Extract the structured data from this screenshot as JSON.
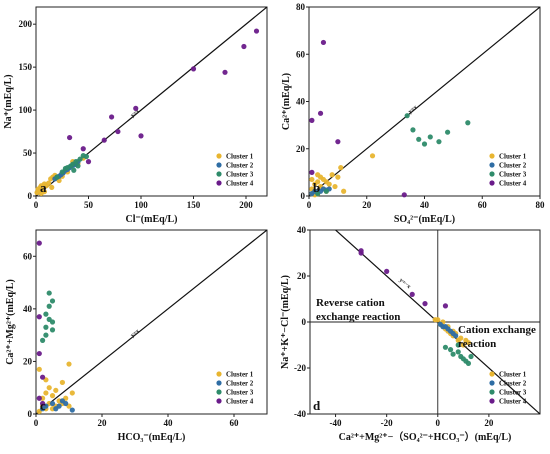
{
  "figure": {
    "legend_position": "bottom-right",
    "cluster_colors": {
      "Cluster 1": "#e8b530",
      "Cluster 2": "#2e6da4",
      "Cluster 3": "#2e8b6a",
      "Cluster 4": "#6a1b8a"
    }
  },
  "chart_data": [
    {
      "id": "a",
      "type": "scatter",
      "panel_label": "a",
      "xlabel": "Cl⁻(mEq/L)",
      "ylabel": "Na⁺(mEq/L)",
      "xlim": [
        0,
        220
      ],
      "ylim": [
        0,
        220
      ],
      "xticks": [
        0,
        50,
        100,
        150,
        200
      ],
      "yticks": [
        0,
        50,
        100,
        150,
        200
      ],
      "reference_line": {
        "label": "y=x",
        "slope": 1
      },
      "legend": [
        "Cluster 1",
        "Cluster 2",
        "Cluster 3",
        "Cluster 4"
      ],
      "series": [
        {
          "name": "Cluster 1",
          "color": "#e8b530",
          "points": [
            [
              1,
              4
            ],
            [
              2,
              8
            ],
            [
              3,
              6
            ],
            [
              4,
              10
            ],
            [
              5,
              12
            ],
            [
              6,
              9
            ],
            [
              8,
              14
            ],
            [
              10,
              12
            ],
            [
              12,
              15
            ],
            [
              14,
              20
            ],
            [
              16,
              22
            ],
            [
              18,
              24
            ],
            [
              20,
              21
            ],
            [
              25,
              23
            ],
            [
              30,
              28
            ],
            [
              35,
              40
            ],
            [
              40,
              38
            ],
            [
              45,
              44
            ],
            [
              8,
              5
            ],
            [
              5,
              3
            ],
            [
              15,
              10
            ],
            [
              22,
              18
            ],
            [
              28,
              30
            ]
          ]
        },
        {
          "name": "Cluster 2",
          "color": "#2e6da4",
          "points": [
            [
              18,
              20
            ],
            [
              20,
              22
            ],
            [
              22,
              23
            ],
            [
              24,
              25
            ],
            [
              26,
              27
            ],
            [
              28,
              30
            ],
            [
              30,
              31
            ],
            [
              32,
              33
            ],
            [
              34,
              35
            ],
            [
              36,
              36
            ],
            [
              38,
              37
            ],
            [
              40,
              40
            ]
          ]
        },
        {
          "name": "Cluster 3",
          "color": "#2e8b6a",
          "points": [
            [
              20,
              22
            ],
            [
              25,
              28
            ],
            [
              28,
              32
            ],
            [
              30,
              33
            ],
            [
              33,
              35
            ],
            [
              35,
              37
            ],
            [
              38,
              40
            ],
            [
              42,
              43
            ],
            [
              45,
              47
            ],
            [
              48,
              46
            ],
            [
              40,
              35
            ],
            [
              36,
              30
            ]
          ]
        },
        {
          "name": "Cluster 4",
          "color": "#6a1b8a",
          "points": [
            [
              32,
              68
            ],
            [
              50,
              40
            ],
            [
              65,
              65
            ],
            [
              72,
              92
            ],
            [
              78,
              75
            ],
            [
              95,
              102
            ],
            [
              100,
              70
            ],
            [
              150,
              148
            ],
            [
              180,
              144
            ],
            [
              198,
              174
            ],
            [
              210,
              192
            ],
            [
              45,
              55
            ]
          ]
        }
      ]
    },
    {
      "id": "b",
      "type": "scatter",
      "panel_label": "b",
      "xlabel": "SO₄²⁻(mEq/L)",
      "ylabel": "Ca²⁺(mEq/L)",
      "xlim": [
        0,
        80
      ],
      "ylim": [
        0,
        80
      ],
      "xticks": [
        0,
        20,
        40,
        60,
        80
      ],
      "yticks": [
        0,
        20,
        40,
        60,
        80
      ],
      "reference_line": {
        "label": "y=x",
        "slope": 1
      },
      "legend": [
        "Cluster 1",
        "Cluster 2",
        "Cluster 3",
        "Cluster 4"
      ],
      "series": [
        {
          "name": "Cluster 1",
          "color": "#e8b530",
          "points": [
            [
              1,
              1
            ],
            [
              1,
              3
            ],
            [
              2,
              5
            ],
            [
              2,
              2
            ],
            [
              3,
              6
            ],
            [
              3,
              1
            ],
            [
              4,
              4
            ],
            [
              4,
              8
            ],
            [
              5,
              3
            ],
            [
              5,
              7
            ],
            [
              6,
              2
            ],
            [
              6,
              6
            ],
            [
              7,
              5
            ],
            [
              8,
              9
            ],
            [
              9,
              4
            ],
            [
              10,
              8
            ],
            [
              11,
              12
            ],
            [
              12,
              2
            ],
            [
              2,
              0.5
            ],
            [
              22,
              17
            ],
            [
              1,
              7
            ],
            [
              3,
              9
            ]
          ]
        },
        {
          "name": "Cluster 2",
          "color": "#2e6da4",
          "points": [
            [
              1,
              1
            ],
            [
              2,
              2
            ],
            [
              3,
              1.5
            ],
            [
              4,
              2
            ],
            [
              5,
              3
            ],
            [
              6,
              2.5
            ],
            [
              7,
              3
            ]
          ]
        },
        {
          "name": "Cluster 3",
          "color": "#2e8b6a",
          "points": [
            [
              34,
              34
            ],
            [
              36,
              28
            ],
            [
              38,
              24
            ],
            [
              40,
              22
            ],
            [
              42,
              25
            ],
            [
              45,
              23
            ],
            [
              48,
              27
            ],
            [
              55,
              31
            ],
            [
              3,
              1
            ],
            [
              6,
              2
            ]
          ]
        },
        {
          "name": "Cluster 4",
          "color": "#6a1b8a",
          "points": [
            [
              1,
              32
            ],
            [
              4,
              35
            ],
            [
              5,
              65
            ],
            [
              10,
              23
            ],
            [
              33,
              0.5
            ],
            [
              1,
              10
            ]
          ]
        }
      ]
    },
    {
      "id": "c",
      "type": "scatter",
      "panel_label": "c",
      "xlabel": "HCO₃⁻(mEq/L)",
      "ylabel": "Ca²⁺+Mg²⁺(mEq/L)",
      "xlim": [
        0,
        70
      ],
      "ylim": [
        0,
        70
      ],
      "xticks": [
        0,
        20,
        40,
        60
      ],
      "yticks": [
        0,
        20,
        40,
        60
      ],
      "reference_line": {
        "label": "y=x",
        "slope": 1
      },
      "legend": [
        "Cluster 1",
        "Cluster 2",
        "Cluster 3",
        "Cluster 4"
      ],
      "series": [
        {
          "name": "Cluster 1",
          "color": "#e8b530",
          "points": [
            [
              1,
              1
            ],
            [
              2,
              3
            ],
            [
              2,
              6
            ],
            [
              3,
              2
            ],
            [
              3,
              8
            ],
            [
              4,
              4
            ],
            [
              4,
              10
            ],
            [
              5,
              2
            ],
            [
              5,
              7
            ],
            [
              6,
              3
            ],
            [
              6,
              9
            ],
            [
              7,
              5
            ],
            [
              8,
              4
            ],
            [
              8,
              12
            ],
            [
              9,
              6
            ],
            [
              10,
              19
            ],
            [
              10,
              3
            ],
            [
              11,
              8
            ],
            [
              1,
              17
            ],
            [
              3,
              13
            ]
          ]
        },
        {
          "name": "Cluster 2",
          "color": "#2e6da4",
          "points": [
            [
              2,
              2
            ],
            [
              3,
              3
            ],
            [
              5,
              4
            ],
            [
              6,
              2
            ],
            [
              7,
              3
            ],
            [
              8,
              5
            ],
            [
              9,
              4
            ],
            [
              11,
              1.5
            ]
          ]
        },
        {
          "name": "Cluster 3",
          "color": "#2e8b6a",
          "points": [
            [
              3,
              33
            ],
            [
              3,
              38
            ],
            [
              4,
              36
            ],
            [
              4,
              41
            ],
            [
              4,
              46
            ],
            [
              5,
              32
            ],
            [
              5,
              35
            ],
            [
              3,
              30
            ],
            [
              2,
              28
            ],
            [
              5,
              43
            ]
          ]
        },
        {
          "name": "Cluster 4",
          "color": "#6a1b8a",
          "points": [
            [
              1,
              65
            ],
            [
              1,
              37
            ],
            [
              1,
              23
            ],
            [
              2,
              14
            ],
            [
              1,
              6
            ],
            [
              2,
              4
            ]
          ]
        }
      ]
    },
    {
      "id": "d",
      "type": "scatter",
      "panel_label": "d",
      "xlabel": "Ca²⁺+Mg²⁺−（SO₄²⁻+HCO₃⁻）(mEq/L)",
      "ylabel": "Na⁺+K⁺−Cl⁻(mEq/L)",
      "xlim": [
        -50,
        40
      ],
      "ylim": [
        -40,
        40
      ],
      "xticks": [
        -40,
        -20,
        0,
        20
      ],
      "yticks": [
        -40,
        -20,
        0,
        20,
        40
      ],
      "reference_line": {
        "label": "y=−x",
        "slope": -1
      },
      "annotations": [
        "Reverse cation exchange reaction",
        "Cation exchange reaction"
      ],
      "legend": [
        "Cluster 1",
        "Cluster 2",
        "Cluster 3",
        "Cluster 4"
      ],
      "series": [
        {
          "name": "Cluster 1",
          "color": "#e8b530",
          "points": [
            [
              0,
              1
            ],
            [
              1,
              -1
            ],
            [
              2,
              -2
            ],
            [
              3,
              -3
            ],
            [
              4,
              -4
            ],
            [
              5,
              -5
            ],
            [
              6,
              -6
            ],
            [
              7,
              -5
            ],
            [
              8,
              -8
            ],
            [
              9,
              -7
            ],
            [
              10,
              -10
            ],
            [
              11,
              -8
            ],
            [
              -1,
              1
            ],
            [
              2,
              0
            ],
            [
              4,
              -2
            ],
            [
              6,
              -4
            ],
            [
              12,
              -9
            ]
          ]
        },
        {
          "name": "Cluster 2",
          "color": "#2e6da4",
          "points": [
            [
              1,
              -1
            ],
            [
              2,
              -2
            ],
            [
              3,
              -2
            ],
            [
              4,
              -3
            ],
            [
              5,
              -4
            ],
            [
              6,
              -5
            ],
            [
              7,
              -6
            ]
          ]
        },
        {
          "name": "Cluster 3",
          "color": "#2e8b6a",
          "points": [
            [
              3,
              -11
            ],
            [
              5,
              -12
            ],
            [
              6,
              -14
            ],
            [
              8,
              -13
            ],
            [
              9,
              -15
            ],
            [
              10,
              -16
            ],
            [
              11,
              -17
            ],
            [
              12,
              -18
            ],
            [
              13,
              -15
            ],
            [
              8,
              -10
            ]
          ]
        },
        {
          "name": "Cluster 4",
          "color": "#6a1b8a",
          "points": [
            [
              -30,
              31
            ],
            [
              -30,
              30
            ],
            [
              -20,
              22
            ],
            [
              -10,
              12
            ],
            [
              -5,
              8
            ],
            [
              3,
              7
            ]
          ]
        }
      ]
    }
  ]
}
